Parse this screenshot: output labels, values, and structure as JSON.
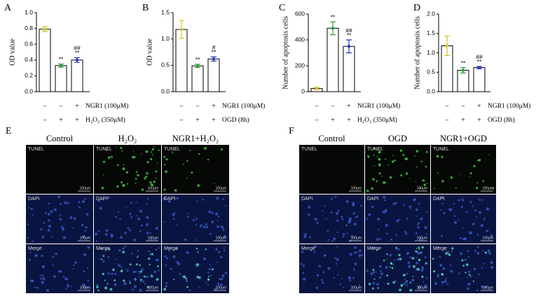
{
  "chart_data": [
    {
      "type": "bar",
      "panel_label": "A",
      "ylabel": "OD value",
      "categories": [
        null,
        null,
        null
      ],
      "values": [
        0.79,
        0.33,
        0.4
      ],
      "errors": [
        0.03,
        0.02,
        0.03
      ],
      "colors": [
        "#d4c32a",
        "#2e9e3a",
        "#2338c8"
      ],
      "ylim": [
        0,
        1
      ],
      "yticks": [
        {
          "value": 0,
          "label": "0.0"
        },
        0.2,
        0.4,
        0.6,
        0.8,
        {
          "value": 1,
          "label": "1.0"
        }
      ],
      "annotations": [
        [],
        [
          "**"
        ],
        [
          "##",
          "**"
        ]
      ],
      "conditions": [
        {
          "label": "NGR1 (100μM)",
          "signs": [
            "−",
            "−",
            "+"
          ]
        },
        {
          "label": "H₂O₂ (350μM)",
          "signs": [
            "−",
            "+",
            "+"
          ]
        }
      ]
    },
    {
      "type": "bar",
      "panel_label": "B",
      "ylabel": "OD value",
      "categories": [
        null,
        null,
        null
      ],
      "values": [
        1.18,
        0.49,
        0.62
      ],
      "errors": [
        0.17,
        0.03,
        0.04
      ],
      "colors": [
        "#d4c32a",
        "#2e9e3a",
        "#2338c8"
      ],
      "ylim": [
        0,
        1.5
      ],
      "yticks": [
        {
          "value": 0,
          "label": "0.0"
        },
        0.5,
        {
          "value": 1,
          "label": "1.0"
        },
        1.5
      ],
      "annotations": [
        [],
        [
          "**"
        ],
        [
          "#",
          "**"
        ]
      ],
      "conditions": [
        {
          "label": "NGR1 (100μM)",
          "signs": [
            "−",
            "−",
            "+"
          ]
        },
        {
          "label": "OGD (8h)",
          "signs": [
            "−",
            "+",
            "+"
          ]
        }
      ]
    },
    {
      "type": "bar",
      "panel_label": "C",
      "ylabel": "Number of apoptosis cells",
      "categories": [
        null,
        null,
        null
      ],
      "values": [
        25,
        490,
        350
      ],
      "errors": [
        8,
        50,
        50
      ],
      "colors": [
        "#d4c32a",
        "#2e9e3a",
        "#2338c8"
      ],
      "ylim": [
        0,
        600
      ],
      "yticks": [
        0,
        200,
        400,
        600
      ],
      "annotations": [
        [],
        [
          "**"
        ],
        [
          "##",
          "**"
        ]
      ],
      "conditions": [
        {
          "label": "NGR1 (100μM)",
          "signs": [
            "−",
            "−",
            "+"
          ]
        },
        {
          "label": "H₂O₂ (350μM)",
          "signs": [
            "−",
            "+",
            "+"
          ]
        }
      ]
    },
    {
      "type": "bar",
      "panel_label": "D",
      "ylabel": "Number of apoptosis cells",
      "categories": [
        null,
        null,
        null
      ],
      "values": [
        1.18,
        0.55,
        0.62
      ],
      "errors": [
        0.25,
        0.07,
        0.03
      ],
      "colors": [
        "#d4c32a",
        "#2e9e3a",
        "#2338c8"
      ],
      "ylim": [
        0,
        2
      ],
      "yticks": [
        {
          "value": 0,
          "label": "0.0"
        },
        0.5,
        {
          "value": 1,
          "label": "1.0"
        },
        1.5,
        {
          "value": 2,
          "label": "2.0"
        }
      ],
      "annotations": [
        [],
        [
          "**"
        ],
        [
          "##",
          "**"
        ]
      ],
      "conditions": [
        {
          "label": "NGR1 (100μM)",
          "signs": [
            "−",
            "−",
            "+"
          ]
        },
        {
          "label": "OGD (8h)",
          "signs": [
            "−",
            "+",
            "+"
          ]
        }
      ]
    }
  ],
  "image_panels": [
    {
      "label": "E",
      "columns": [
        "Control",
        "H₂O₂",
        "NGR1+H₂O₂"
      ],
      "rows": [
        "TUNEL",
        "DAPI",
        "Merge"
      ],
      "scale_bar": "100μm"
    },
    {
      "label": "F",
      "columns": [
        "Control",
        "OGD",
        "NGR1+OGD"
      ],
      "rows": [
        "TUNEL",
        "DAPI",
        "Merge"
      ],
      "scale_bar": "100μm"
    }
  ]
}
